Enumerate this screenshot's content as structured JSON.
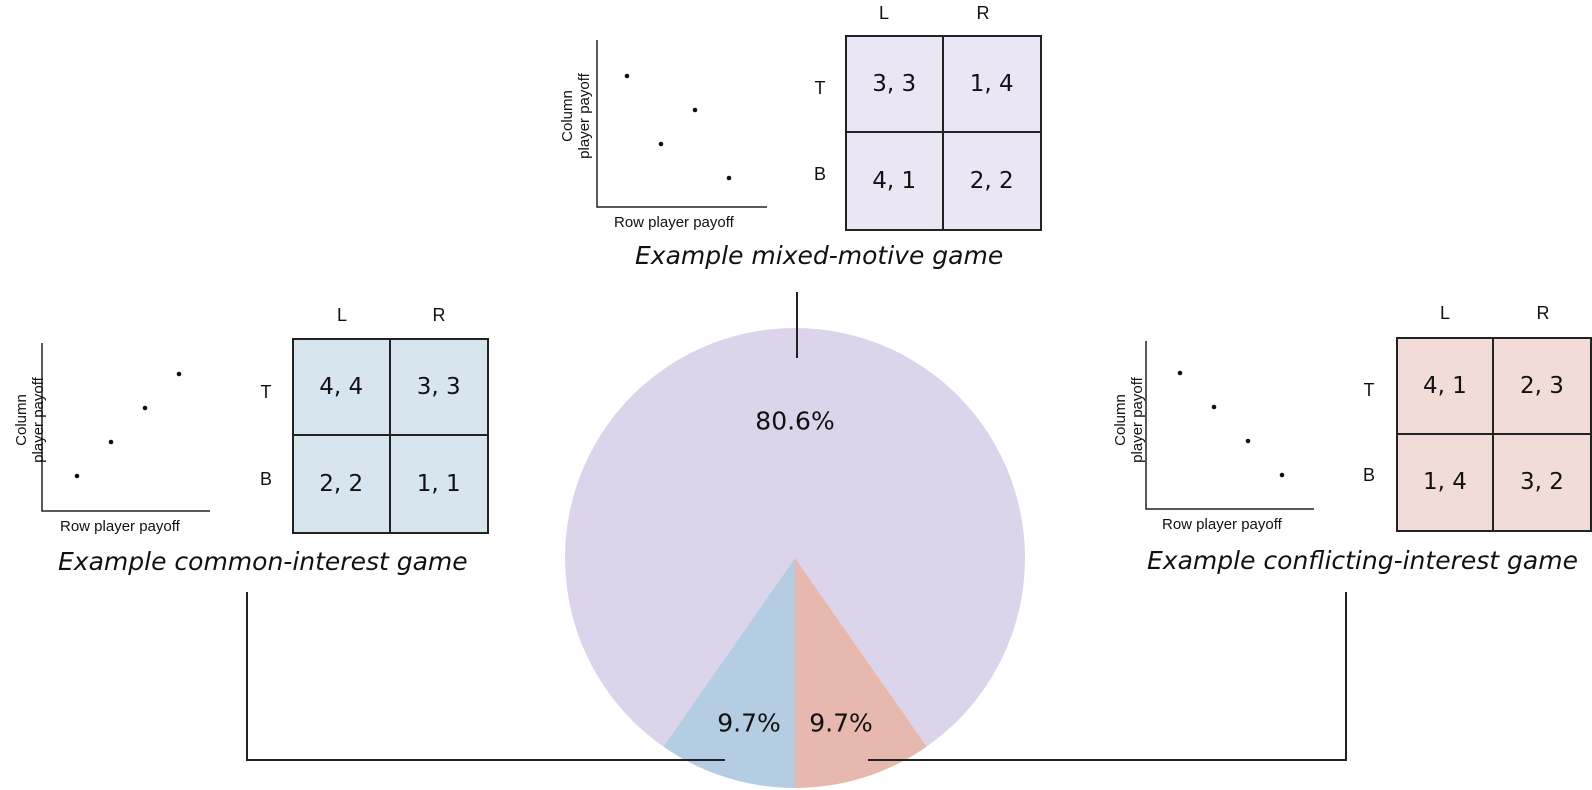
{
  "colors": {
    "mixed": "#dcd4ea",
    "common": "#b4cde2",
    "conflicting": "#e7b8ad",
    "mixed_cell": "#ebe6f3",
    "common_cell": "#d7e5ee",
    "conflicting_cell": "#f2dcd8",
    "line": "#222222"
  },
  "chart_data": {
    "type": "pie",
    "slices": [
      {
        "category": "mixed-motive",
        "value": 80.6,
        "label": "80.6%"
      },
      {
        "category": "common-interest",
        "value": 9.7,
        "label": "9.7%"
      },
      {
        "category": "conflicting-interest",
        "value": 9.7,
        "label": "9.7%"
      }
    ]
  },
  "panels": {
    "mixed": {
      "caption": "Example mixed-motive game",
      "xlabel": "Row player payoff",
      "ylabel_line1": "Column",
      "ylabel_line2": "player payoff",
      "points": [
        [
          3,
          3
        ],
        [
          1,
          4
        ],
        [
          4,
          1
        ],
        [
          2,
          2
        ]
      ],
      "col_headers": [
        "L",
        "R"
      ],
      "row_headers": [
        "T",
        "B"
      ],
      "cells": [
        "3, 3",
        "1, 4",
        "4, 1",
        "2, 2"
      ]
    },
    "common": {
      "caption": "Example common-interest game",
      "xlabel": "Row player payoff",
      "ylabel_line1": "Column",
      "ylabel_line2": "player payoff",
      "points": [
        [
          4,
          4
        ],
        [
          3,
          3
        ],
        [
          2,
          2
        ],
        [
          1,
          1
        ]
      ],
      "col_headers": [
        "L",
        "R"
      ],
      "row_headers": [
        "T",
        "B"
      ],
      "cells": [
        "4, 4",
        "3, 3",
        "2, 2",
        "1, 1"
      ]
    },
    "conflicting": {
      "caption": "Example conflicting-interest game",
      "xlabel": "Row player payoff",
      "ylabel_line1": "Column",
      "ylabel_line2": "player payoff",
      "points": [
        [
          4,
          1
        ],
        [
          2,
          3
        ],
        [
          1,
          4
        ],
        [
          3,
          2
        ]
      ],
      "col_headers": [
        "L",
        "R"
      ],
      "row_headers": [
        "T",
        "B"
      ],
      "cells": [
        "4, 1",
        "2, 3",
        "1, 4",
        "3, 2"
      ]
    }
  }
}
